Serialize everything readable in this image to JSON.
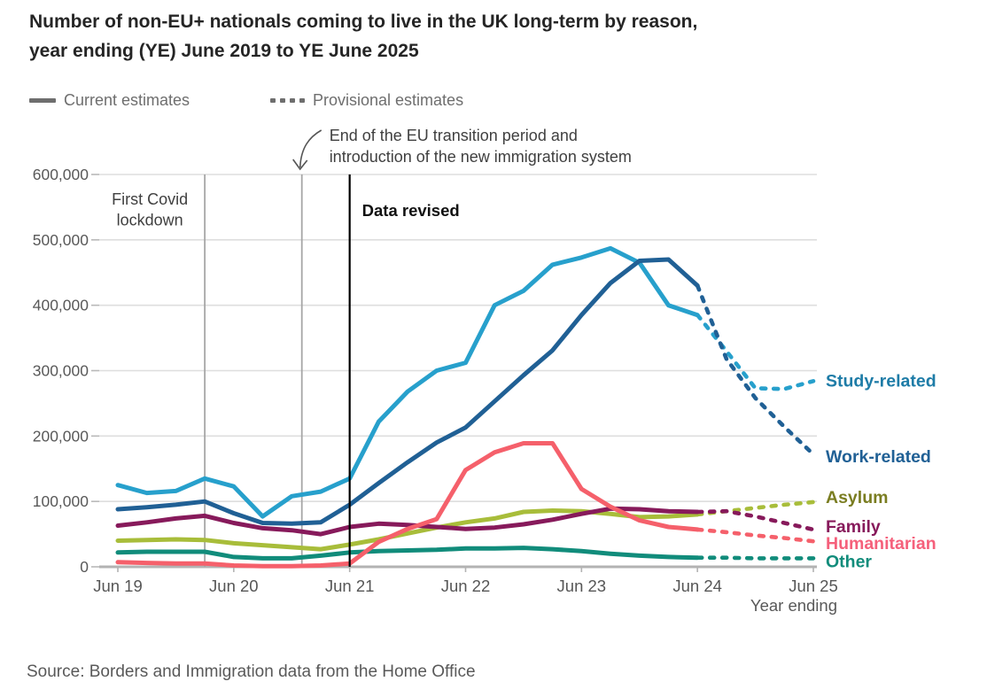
{
  "page": {
    "title": "Number of non-EU+ nationals coming to live in the UK long-term by reason, year ending (YE) June 2019 to YE June 2025",
    "source": "Source: Borders and Immigration data from the Home Office"
  },
  "legend": {
    "current_label": "Current estimates",
    "provisional_label": "Provisional estimates"
  },
  "chart_data": {
    "type": "line",
    "x_axis_title": "Year ending",
    "x_points": [
      "Jun 19",
      "Sep 19",
      "Dec 19",
      "Mar 20",
      "Jun 20",
      "Sep 20",
      "Dec 20",
      "Mar 21",
      "Jun 21",
      "Sep 21",
      "Dec 21",
      "Mar 22",
      "Jun 22",
      "Sep 22",
      "Dec 22",
      "Mar 23",
      "Jun 23",
      "Sep 23",
      "Dec 23",
      "Mar 24",
      "Jun 24",
      "Sep 24",
      "Dec 24",
      "Mar 25",
      "Jun 25"
    ],
    "x_tick_every": 4,
    "ylim": [
      0,
      600000
    ],
    "y_ticks": [
      {
        "value": 0,
        "label": "0"
      },
      {
        "value": 100000,
        "label": "100,000"
      },
      {
        "value": 200000,
        "label": "200,000"
      },
      {
        "value": 300000,
        "label": "300,000"
      },
      {
        "value": 400000,
        "label": "400,000"
      },
      {
        "value": 500000,
        "label": "500,000"
      },
      {
        "value": 600000,
        "label": "600,000"
      }
    ],
    "provisional_from_index": 20,
    "series": [
      {
        "name": "other",
        "label": "Other",
        "color": "#118C7B",
        "label_color": "#118C7B",
        "values": [
          22000,
          23000,
          23000,
          23000,
          15000,
          13000,
          13000,
          17000,
          22000,
          24000,
          25000,
          26000,
          28000,
          28000,
          29000,
          27000,
          24000,
          20000,
          17000,
          15000,
          14000,
          14000,
          13000,
          13000,
          13000
        ]
      },
      {
        "name": "asylum",
        "label": "Asylum",
        "color": "#A8BD3A",
        "label_color": "#7A7D21",
        "values": [
          40000,
          41000,
          42000,
          41000,
          36000,
          33000,
          30000,
          27000,
          34000,
          42000,
          51000,
          60000,
          68000,
          74000,
          84000,
          86000,
          85000,
          81000,
          76000,
          77000,
          80000,
          85000,
          90000,
          95000,
          99000
        ]
      },
      {
        "name": "family",
        "label": "Family",
        "color": "#871A5B",
        "label_color": "#871A5B",
        "values": [
          63000,
          68000,
          74000,
          78000,
          67000,
          59000,
          56000,
          50000,
          61000,
          66000,
          64000,
          61000,
          58000,
          60000,
          65000,
          72000,
          81000,
          89000,
          88000,
          85000,
          84000,
          85000,
          77000,
          67000,
          57000
        ]
      },
      {
        "name": "humanitarian",
        "label": "Humanitarian",
        "color": "#F5606B",
        "label_color": "#F5607B",
        "values": [
          7000,
          6000,
          5000,
          5000,
          2000,
          1000,
          1000,
          2000,
          5000,
          38000,
          58000,
          73000,
          148000,
          175000,
          189000,
          189000,
          119000,
          92000,
          71000,
          61000,
          57000,
          53000,
          48000,
          44000,
          39000
        ]
      },
      {
        "name": "study",
        "label": "Study-related",
        "color": "#27A0CC",
        "label_color": "#1E7CA7",
        "values": [
          125000,
          113000,
          116000,
          135000,
          123000,
          77000,
          108000,
          115000,
          135000,
          222000,
          268000,
          300000,
          312000,
          400000,
          422000,
          462000,
          473000,
          487000,
          465000,
          400000,
          385000,
          330000,
          273000,
          272000,
          284000
        ]
      },
      {
        "name": "work",
        "label": "Work-related",
        "color": "#206095",
        "label_color": "#206095",
        "values": [
          88000,
          91000,
          95000,
          100000,
          82000,
          67000,
          66000,
          68000,
          95000,
          128000,
          160000,
          190000,
          213000,
          253000,
          293000,
          331000,
          385000,
          434000,
          468000,
          470000,
          430000,
          318000,
          258000,
          214000,
          172000
        ]
      }
    ],
    "annotations": {
      "first_covid_lockdown": {
        "lines": [
          "First Covid",
          "lockdown"
        ],
        "quarter_index": 3,
        "line_color": "#A6A6A6"
      },
      "eu_transition": {
        "lines": [
          "End of the EU transition period and",
          "introduction of the new immigration system"
        ],
        "quarter_index": 6.35,
        "line_color": "#A6A6A6"
      },
      "data_revised": {
        "text": "Data revised",
        "quarter_index": 8,
        "line_color": "#000000"
      }
    }
  }
}
